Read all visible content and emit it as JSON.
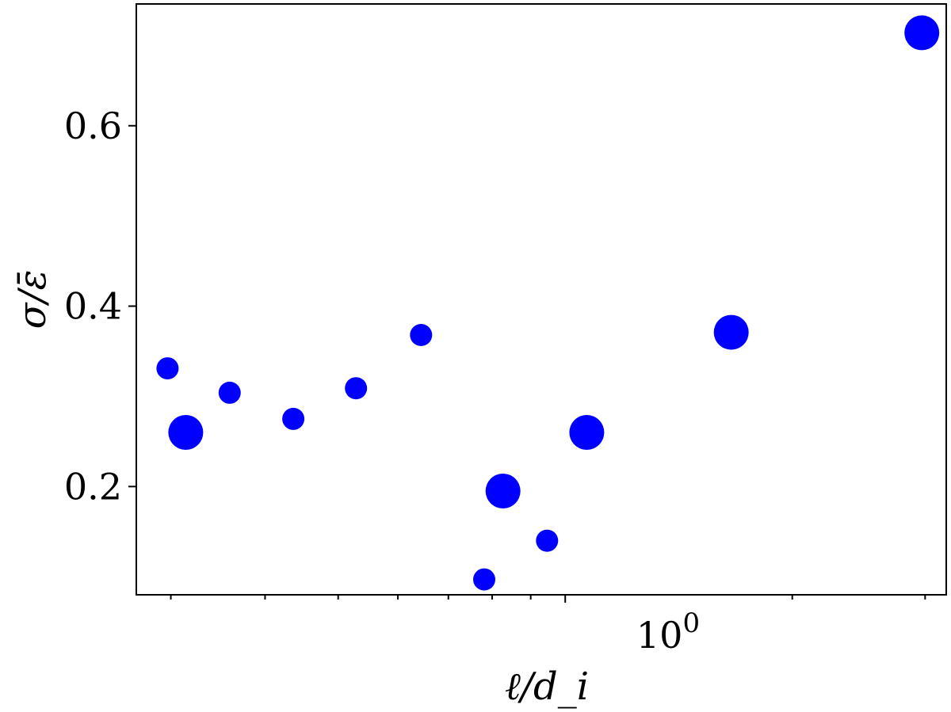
{
  "chart_data": {
    "type": "scatter",
    "xlabel": "ℓ/d_i",
    "ylabel": "σ/ε̄",
    "xscale": "log",
    "xlim": [
      0.27,
      3.2
    ],
    "ylim": [
      0.08,
      0.735
    ],
    "grid": false,
    "legend": "none",
    "marker_color": "#0000ff",
    "xticks": [
      {
        "value": 1.0,
        "label": "10",
        "exponent": "0"
      }
    ],
    "yticks": [
      {
        "value": 0.2,
        "label": "0.2"
      },
      {
        "value": 0.4,
        "label": "0.4"
      },
      {
        "value": 0.6,
        "label": "0.6"
      }
    ],
    "points": [
      {
        "x": 0.297,
        "y": 0.331,
        "size": "small"
      },
      {
        "x": 0.314,
        "y": 0.26,
        "size": "large"
      },
      {
        "x": 0.359,
        "y": 0.304,
        "size": "small"
      },
      {
        "x": 0.436,
        "y": 0.275,
        "size": "small"
      },
      {
        "x": 0.528,
        "y": 0.309,
        "size": "small"
      },
      {
        "x": 0.644,
        "y": 0.368,
        "size": "small"
      },
      {
        "x": 0.781,
        "y": 0.097,
        "size": "small"
      },
      {
        "x": 0.827,
        "y": 0.195,
        "size": "large"
      },
      {
        "x": 0.946,
        "y": 0.14,
        "size": "small"
      },
      {
        "x": 1.068,
        "y": 0.26,
        "size": "large"
      },
      {
        "x": 1.66,
        "y": 0.371,
        "size": "large"
      },
      {
        "x": 2.97,
        "y": 0.703,
        "size": "large"
      }
    ]
  }
}
